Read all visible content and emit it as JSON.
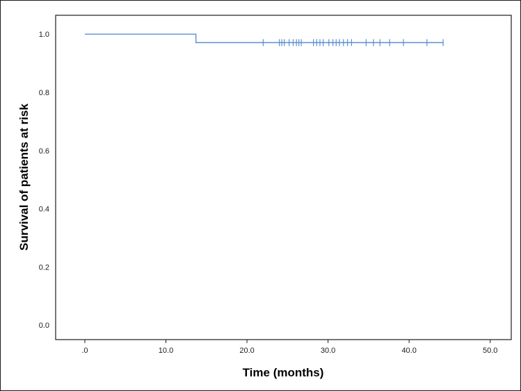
{
  "chart_data": {
    "type": "line",
    "title": "",
    "xlabel": "Time (months)",
    "ylabel": "Survival of patients at risk",
    "xlim": [
      -3.6,
      52.6
    ],
    "ylim": [
      -0.05,
      1.065
    ],
    "x_ticks": [
      0,
      10,
      20,
      30,
      40,
      50
    ],
    "x_tick_labels": [
      ".0",
      "10.0",
      "20.0",
      "30.0",
      "40.0",
      "50.0"
    ],
    "y_ticks": [
      0,
      0.2,
      0.4,
      0.6,
      0.8,
      1.0
    ],
    "y_tick_labels": [
      "0.0",
      "0.2",
      "0.4",
      "0.6",
      "0.8",
      "1.0"
    ],
    "grid": false,
    "legend": "none",
    "series": [
      {
        "color": "#5b8fd2",
        "steps": [
          {
            "x": 0,
            "y": 1.0
          },
          {
            "x": 13.7,
            "y": 0.971
          },
          {
            "x": 44.2,
            "y": 0.971
          }
        ],
        "censored": [
          22.0,
          24.0,
          24.3,
          24.6,
          25.2,
          25.7,
          26.1,
          26.4,
          26.7,
          28.2,
          28.6,
          29.0,
          29.4,
          30.1,
          30.6,
          31.0,
          31.4,
          31.9,
          32.4,
          32.9,
          34.7,
          35.6,
          36.4,
          37.6,
          39.3,
          42.2,
          44.2
        ]
      }
    ]
  }
}
